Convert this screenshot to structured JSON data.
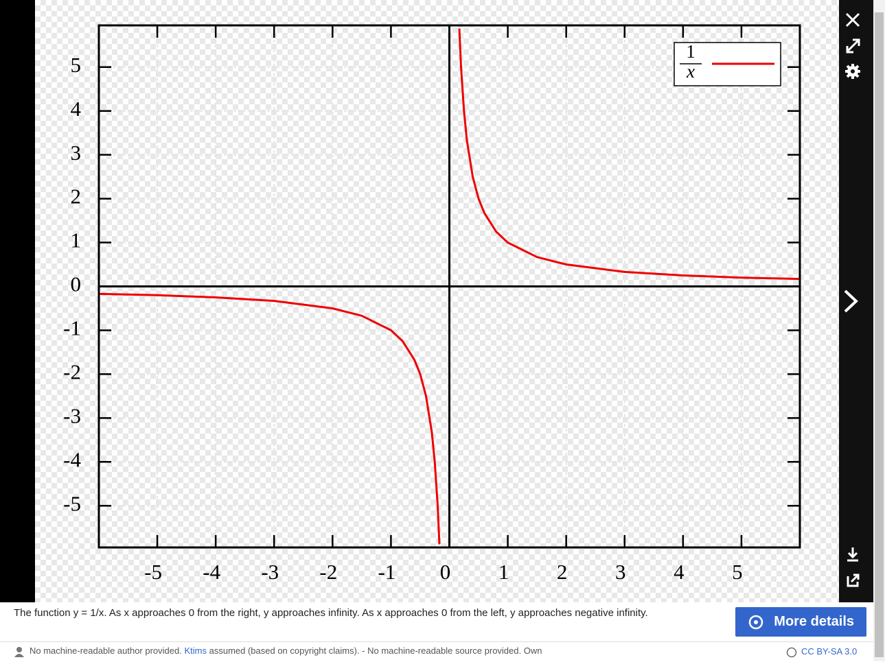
{
  "chart_data": {
    "type": "line",
    "x": [
      -6,
      -5,
      -4,
      -3,
      -2,
      -1.5,
      -1,
      -0.8,
      -0.6,
      -0.5,
      -0.4,
      -0.3,
      -0.25,
      -0.2,
      -0.17,
      0,
      0.17,
      0.2,
      0.25,
      0.3,
      0.4,
      0.5,
      0.6,
      0.8,
      1,
      1.5,
      2,
      3,
      4,
      5,
      6
    ],
    "series": [
      {
        "color": "#ee0000",
        "values": [
          -0.17,
          -0.2,
          -0.25,
          -0.33,
          -0.5,
          -0.67,
          -1,
          -1.25,
          -1.67,
          -2,
          -2.5,
          -3.33,
          -4,
          -5,
          -5.88,
          null,
          5.88,
          5,
          4,
          3.33,
          2.5,
          2,
          1.67,
          1.25,
          1,
          0.67,
          0.5,
          0.33,
          0.25,
          0.2,
          0.17
        ]
      }
    ],
    "legend": {
      "numerator": "1",
      "denominator": "x"
    },
    "xlim": [
      -6,
      6
    ],
    "ylim": [
      -5.95,
      5.95
    ],
    "xticks": [
      -5,
      -4,
      -3,
      -2,
      -1,
      0,
      1,
      2,
      3,
      4,
      5
    ],
    "yticks": [
      -5,
      -4,
      -3,
      -2,
      -1,
      0,
      1,
      2,
      3,
      4,
      5
    ],
    "grid": true
  },
  "caption": "The function y = 1/x. As x approaches 0 from the right, y approaches infinity. As x approaches 0 from the left, y approaches negative infinity.",
  "button": "More details",
  "footer": {
    "author": "No machine-readable author provided.",
    "link": "Ktims",
    "rest": "assumed (based on copyright claims). - No machine-readable source provided. Own",
    "license": "CC BY-SA 3.0"
  }
}
